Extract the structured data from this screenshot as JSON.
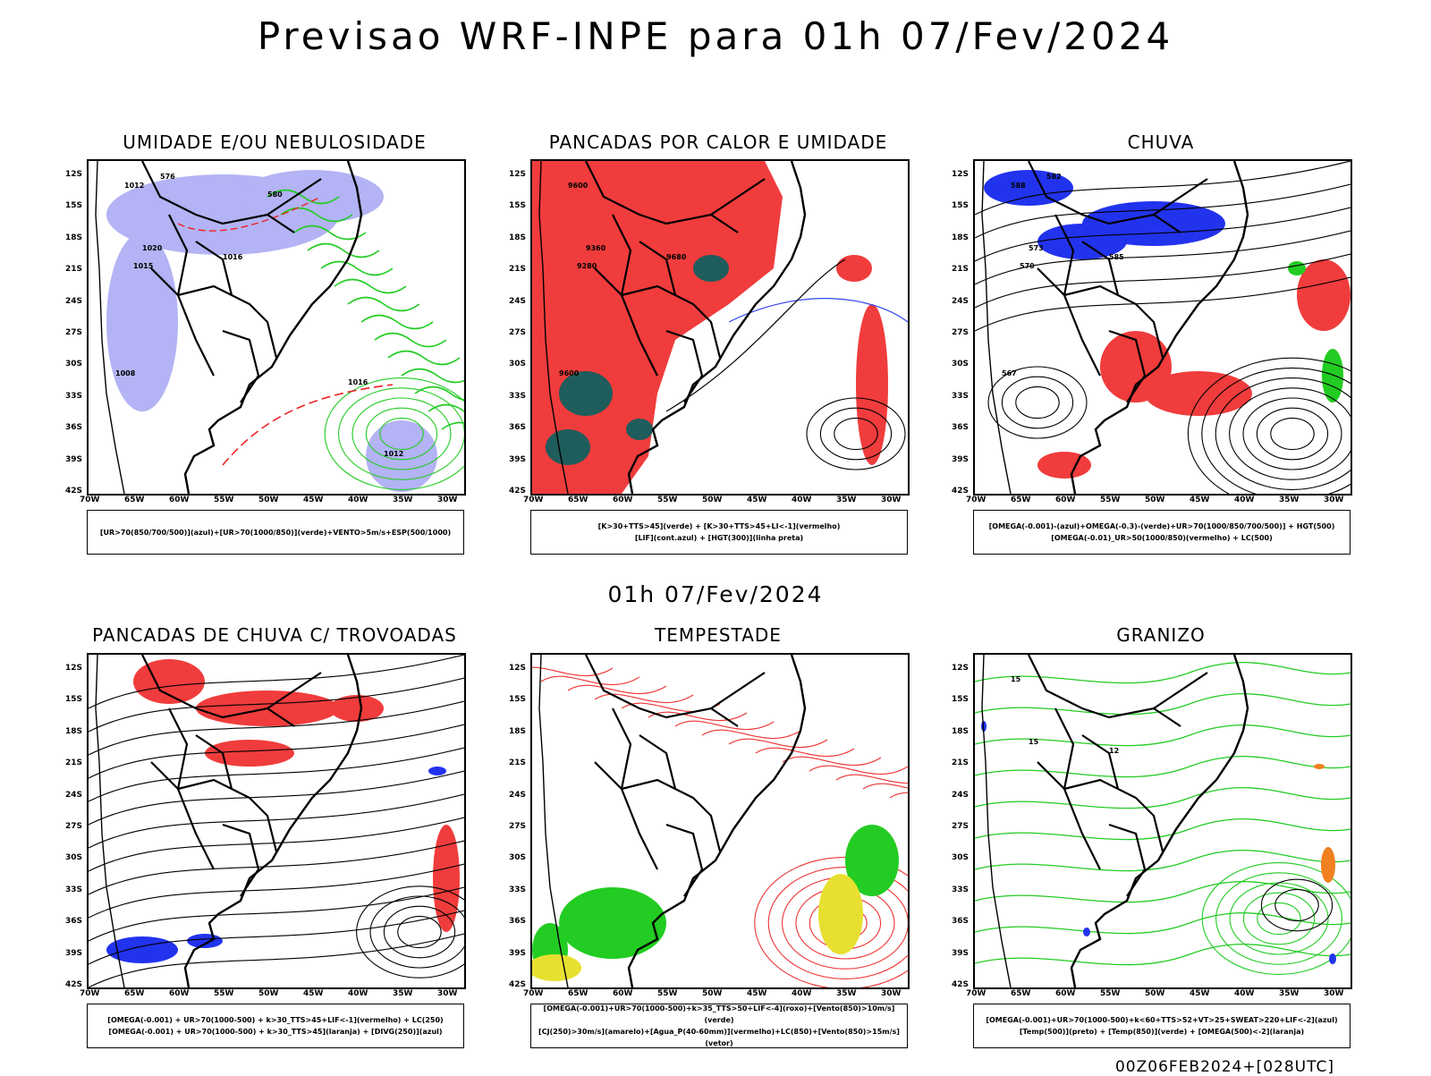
{
  "title": "Previsao WRF-INPE  para 01h 07/Fev/2024",
  "mid_date": "01h 07/Fev/2024",
  "footer": "00Z06FEB2024+[028UTC]",
  "lat_ticks": [
    "12S",
    "15S",
    "18S",
    "21S",
    "24S",
    "27S",
    "30S",
    "33S",
    "36S",
    "39S",
    "42S"
  ],
  "lon_ticks": [
    "70W",
    "65W",
    "60W",
    "55W",
    "50W",
    "45W",
    "40W",
    "35W",
    "30W"
  ],
  "panels": [
    {
      "title": "UMIDADE E/OU NEBULOSIDADE",
      "legend": [
        "[UR>70(850/700/500)](azul)+[UR>70(1000/850)](verde)+VENTO>5m/s+ESP(500/1000)"
      ],
      "contour_labels": [
        "1012",
        "1016",
        "1020",
        "1015",
        "1008",
        "576",
        "580",
        "1012",
        "1016"
      ],
      "colors": {
        "fill": "#b3b3f5",
        "contour": "#22cc22",
        "thickness": "#ee2222"
      }
    },
    {
      "title": "PANCADAS POR CALOR E UMIDADE",
      "legend": [
        "[K>30+TTS>45](verde)  +  [K>30+TTS>45+LI<-1](vermelho)",
        "[LIF](cont.azul)  +  [HGT(300)](linha preta)"
      ],
      "contour_labels": [
        "9600",
        "9680",
        "9360",
        "9280",
        "9600"
      ],
      "colors": {
        "fill": "#f03c3c",
        "secondary": "#1f5c5c",
        "contour": "#3344ee"
      }
    },
    {
      "title": "CHUVA",
      "legend": [
        "[OMEGA(-0.001)-(azul)+OMEGA(-0.3)-(verde)+UR>70(1000/850/700/500)]  +  HGT(500)",
        "[OMEGA(-0.01)_UR>50(1000/850)(vermelho)  +  LC(500)"
      ],
      "contour_labels": [
        "588",
        "585",
        "573",
        "570",
        "567",
        "582"
      ],
      "colors": {
        "blue": "#2233ee",
        "red": "#f03c3c",
        "green": "#22cc22"
      }
    },
    {
      "title": "PANCADAS DE CHUVA C/ TROVOADAS",
      "legend": [
        "[OMEGA(-0.001)  +  UR>70(1000-500)  +  k>30_TTS>45+LIF<-1](vermelho)  +  LC(250)",
        "[OMEGA(-0.001)  +  UR>70(1000-500)  +  k>30_TTS>45](laranja)  +  [DIVG(250)](azul)"
      ],
      "contour_labels": [],
      "colors": {
        "red": "#f03c3c",
        "blue": "#2233ee",
        "orange": "#f08020"
      }
    },
    {
      "title": "TEMPESTADE",
      "legend": [
        "[OMEGA(-0.001)+UR>70(1000-500)+k>35_TTS>50+LIF<-4](roxo)+[Vento(850)>10m/s](verde)",
        "[CJ(250)>30m/s](amarelo)+[Agua_P(40-60mm)](vermelho)+LC(850)+[Vento(850)>15m/s](vetor)"
      ],
      "contour_labels": [],
      "colors": {
        "red": "#ee3333",
        "green": "#22cc22",
        "yellow": "#e8e030"
      }
    },
    {
      "title": "GRANIZO",
      "legend": [
        "[OMEGA(-0.001)+UR>70(1000-500)+k<60+TTS>52+VT>25+SWEAT>220+LIF<-2](azul)",
        "[Temp(500)](preto)  +  [Temp(850)](verde)  +  [OMEGA(500)<-2](laranja)"
      ],
      "contour_labels": [
        "15",
        "12",
        "15"
      ],
      "colors": {
        "green": "#22cc22",
        "orange": "#f08020",
        "blue": "#2233ee"
      }
    }
  ]
}
